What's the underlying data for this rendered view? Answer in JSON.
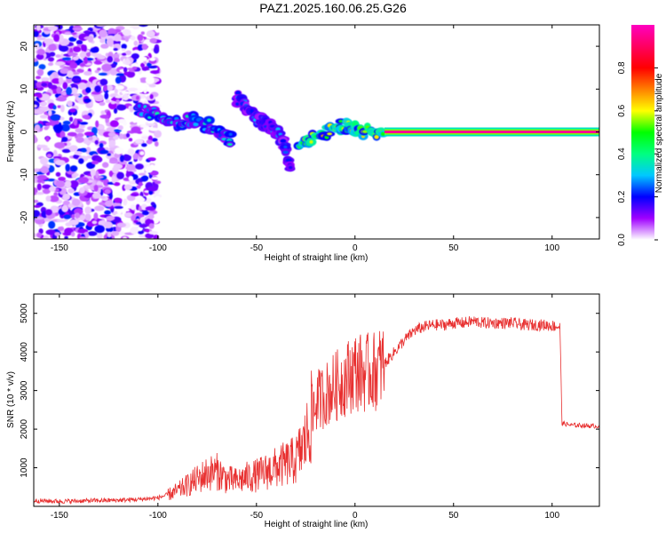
{
  "title": "PAZ1.2025.160.06.25.G26",
  "chart_data": [
    {
      "type": "heatmap",
      "xlabel": "Height of straight line (km)",
      "ylabel": "Frequency (Hz)",
      "xlim": [
        -163,
        124
      ],
      "ylim": [
        -25,
        25
      ],
      "xticks": [
        -150,
        -100,
        -50,
        0,
        50,
        100
      ],
      "yticks": [
        -20,
        -10,
        0,
        10,
        20
      ],
      "colorbar": {
        "label": "Normalized spectral amplitude",
        "range": [
          0,
          1
        ],
        "ticks": [
          0.0,
          0.2,
          0.4,
          0.6,
          0.8
        ],
        "colors": [
          "#ffffff",
          "#a000ff",
          "#0000ff",
          "#00c8ff",
          "#00ff80",
          "#00ff00",
          "#ffff00",
          "#ff8000",
          "#ff0000",
          "#ff0060",
          "#ff00c0"
        ]
      },
      "features": [
        {
          "name": "noise",
          "x": [
            -163,
            -100
          ],
          "y": [
            -25,
            25
          ],
          "amplitude": 0.05
        },
        {
          "name": "descending trace 1",
          "points": [
            [
              -110,
              5
            ],
            [
              -100,
              4
            ],
            [
              -90,
              2
            ],
            [
              -80,
              3
            ],
            [
              -70,
              0
            ],
            [
              -62,
              -2
            ]
          ],
          "amplitude": 0.25
        },
        {
          "name": "descending trace 2",
          "points": [
            [
              -60,
              8
            ],
            [
              -55,
              5
            ],
            [
              -50,
              3
            ],
            [
              -45,
              2
            ],
            [
              -40,
              0
            ],
            [
              -36,
              -3
            ],
            [
              -32,
              -10
            ]
          ],
          "amplitude": 0.2
        },
        {
          "name": "merging trace",
          "points": [
            [
              -28,
              -3
            ],
            [
              -20,
              -1
            ],
            [
              -10,
              1
            ],
            [
              -5,
              1.5
            ],
            [
              0,
              1
            ],
            [
              5,
              0
            ],
            [
              15,
              0
            ]
          ],
          "amplitude": 0.45
        },
        {
          "name": "constant tone",
          "points": [
            [
              15,
              0
            ],
            [
              124,
              0
            ]
          ],
          "amplitude": 0.95
        }
      ]
    },
    {
      "type": "line",
      "xlabel": "Height of straight line (km)",
      "ylabel": "SNR (10 * v/v)",
      "xlim": [
        -163,
        124
      ],
      "ylim": [
        0,
        5500
      ],
      "xticks": [
        -150,
        -100,
        -50,
        0,
        50,
        100
      ],
      "yticks": [
        1000,
        2000,
        3000,
        4000,
        5000
      ],
      "color": "#e83030",
      "series": [
        {
          "x": [
            -163,
            -150,
            -140,
            -130,
            -120,
            -110,
            -100,
            -95,
            -90,
            -85,
            -80,
            -75,
            -70,
            -65,
            -60,
            -55,
            -50,
            -45,
            -40,
            -35,
            -30,
            -25,
            -20,
            -15,
            -10,
            -5,
            0,
            5,
            10,
            15,
            20,
            25,
            30,
            35,
            40,
            45,
            50,
            55,
            60,
            65,
            70,
            75,
            80,
            85,
            90,
            95,
            100,
            104,
            105,
            110,
            115,
            120,
            124
          ],
          "y": [
            150,
            130,
            140,
            150,
            160,
            180,
            220,
            300,
            400,
            550,
            700,
            850,
            900,
            700,
            650,
            750,
            800,
            900,
            1000,
            1100,
            1200,
            1700,
            2700,
            2900,
            3100,
            3300,
            3500,
            3450,
            3500,
            3700,
            4000,
            4300,
            4550,
            4650,
            4700,
            4700,
            4750,
            4750,
            4800,
            4750,
            4750,
            4750,
            4750,
            4700,
            4700,
            4700,
            4680,
            4650,
            2150,
            2100,
            2100,
            2080,
            2080
          ]
        }
      ]
    }
  ]
}
